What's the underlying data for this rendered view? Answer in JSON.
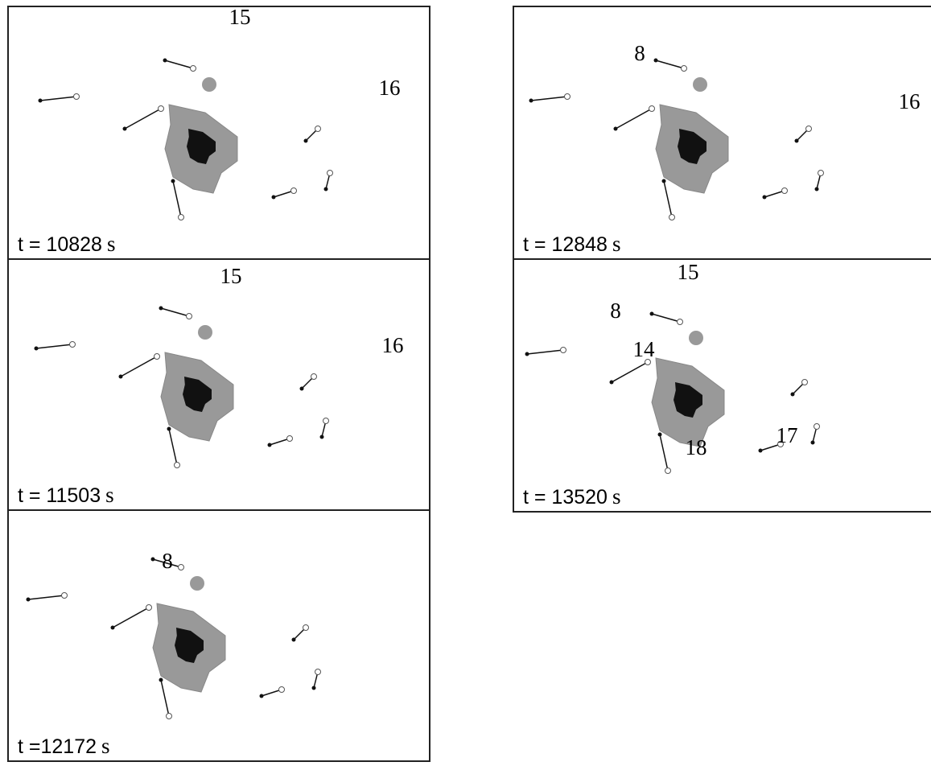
{
  "panels": [
    {
      "time": "t = 10828",
      "unit": "s",
      "labels": [
        "15",
        "16"
      ]
    },
    {
      "time": "t = 11503",
      "unit": "s",
      "labels": [
        "15",
        "16"
      ]
    },
    {
      "time": "t =12172",
      "unit": "s",
      "labels": [
        "8"
      ]
    },
    {
      "time": "t = 12848",
      "unit": "s",
      "labels": [
        "8",
        "16"
      ]
    },
    {
      "time": "t = 13520",
      "unit": "s",
      "labels": [
        "15",
        "8",
        "14",
        "17",
        "18"
      ]
    }
  ]
}
